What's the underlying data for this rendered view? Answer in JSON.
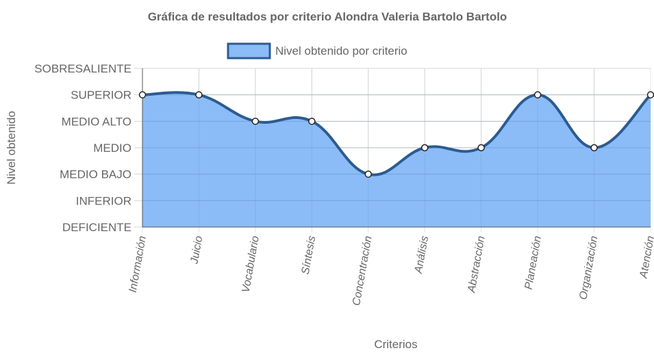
{
  "chart_data": {
    "type": "area",
    "title": "Gráfica de resultados por criterio Alondra Valeria Bartolo Bartolo",
    "xlabel": "Criterios",
    "ylabel": "Nivel obtenido",
    "categories": [
      "Información",
      "Juicio",
      "Vocabulario",
      "Síntesis",
      "Concentración",
      "Análisis",
      "Abstracción",
      "Planeación",
      "Organización",
      "Atención"
    ],
    "y_levels": [
      "DEFICIENTE",
      "INFERIOR",
      "MEDIO BAJO",
      "MEDIO",
      "MEDIO ALTO",
      "SUPERIOR",
      "SOBRESALIENTE"
    ],
    "ylim": [
      0,
      6
    ],
    "grid": true,
    "legend_position": "top-center",
    "series": [
      {
        "name": "Nivel obtenido por criterio",
        "values": [
          5,
          5,
          4,
          4,
          2,
          3,
          3,
          5,
          3,
          5
        ],
        "fill_color": "#8bbcf7",
        "line_color": "#2c5b91"
      }
    ]
  }
}
